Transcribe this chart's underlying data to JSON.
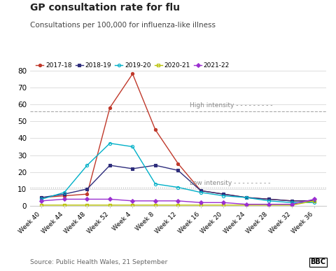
{
  "title": "GP consultation rate for flu",
  "subtitle": "Consultations per 100,000 for influenza-like illness",
  "source": "Source: Public Health Wales, 21 September",
  "x_labels": [
    "Week 40",
    "Week 44",
    "Week 48",
    "Week 52",
    "Week 4",
    "Week 8",
    "Week 12",
    "Week 16",
    "Week 20",
    "Week 24",
    "Week 28",
    "Week 32",
    "Week 36"
  ],
  "high_intensity": 56,
  "low_intensity": 11,
  "ylim": [
    0,
    80
  ],
  "yticks": [
    0,
    10,
    20,
    30,
    40,
    50,
    60,
    70,
    80
  ],
  "series": {
    "2017-18": {
      "color": "#c0392b",
      "marker": "o",
      "markersize": 3,
      "values": [
        5,
        6,
        7,
        58,
        78,
        45,
        25,
        9,
        7,
        5,
        4,
        3,
        3
      ]
    },
    "2018-19": {
      "color": "#2e2d7c",
      "marker": "s",
      "markersize": 3,
      "markerfacecolor": "#2e2d7c",
      "values": [
        5,
        7,
        10,
        24,
        22,
        24,
        21,
        9,
        7,
        5,
        4,
        3,
        3
      ]
    },
    "2019-20": {
      "color": "#00b0c8",
      "marker": "o",
      "markersize": 3,
      "markerfacecolor": "none",
      "values": [
        4,
        8,
        24,
        37,
        35,
        13,
        11,
        8,
        6,
        5,
        3,
        2,
        2
      ]
    },
    "2020-21": {
      "color": "#b8c000",
      "marker": "s",
      "markersize": 3,
      "markerfacecolor": "none",
      "values": [
        0.5,
        0.5,
        0.5,
        0.5,
        0.5,
        0.5,
        0.5,
        0.5,
        0.5,
        0.5,
        0.5,
        0.5,
        3
      ]
    },
    "2021-22": {
      "color": "#9b30d0",
      "marker": "D",
      "markersize": 3,
      "markerfacecolor": "#9b30d0",
      "values": [
        3,
        4,
        4,
        4,
        3,
        3,
        3,
        2,
        2,
        1,
        1,
        1,
        4
      ]
    }
  },
  "legend_order": [
    "2017-18",
    "2018-19",
    "2019-20",
    "2020-21",
    "2021-22"
  ],
  "background_color": "#ffffff",
  "grid_color": "#d8d8d8",
  "intensity_line_color": "#aaaaaa",
  "intensity_label_color": "#888888"
}
